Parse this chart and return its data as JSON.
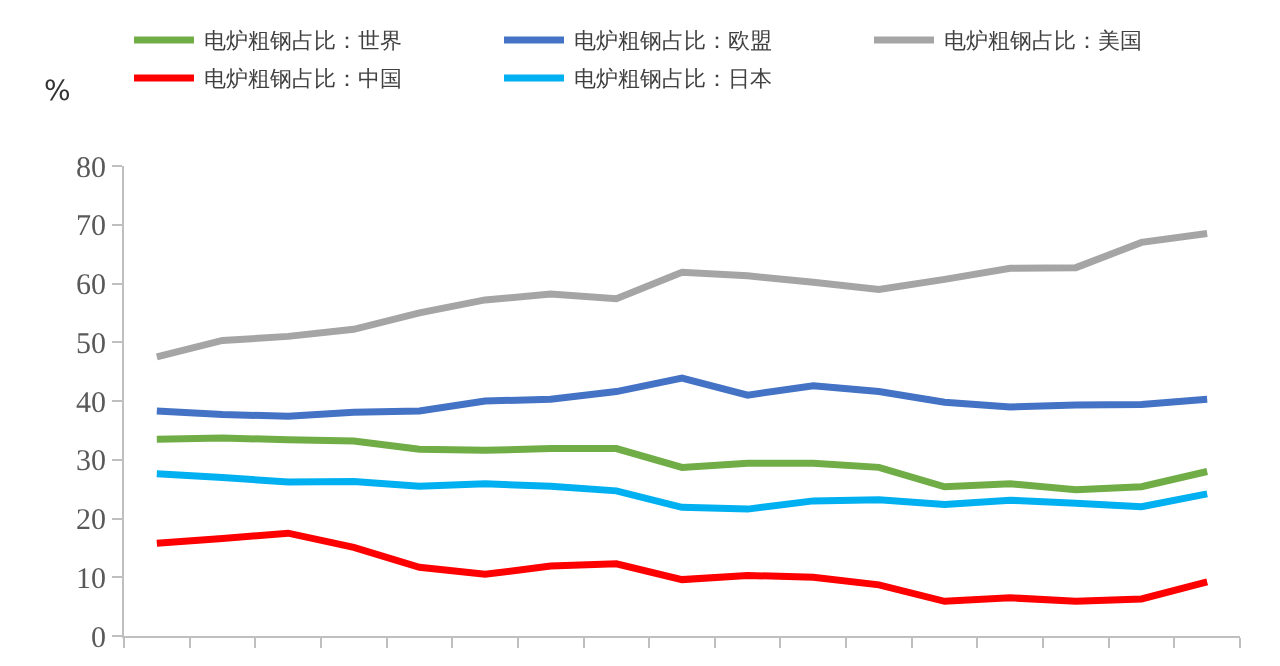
{
  "chart_data": {
    "type": "line",
    "ylabel": "%",
    "categories": [
      null,
      null,
      null,
      null,
      null,
      null,
      null,
      null,
      null,
      null,
      null,
      null,
      null,
      null,
      null,
      null,
      null
    ],
    "series": [
      {
        "name": "电炉粗钢占比：世界",
        "color": "#70ad47",
        "values": [
          33.5,
          33.7,
          33.4,
          33.2,
          31.8,
          31.6,
          31.9,
          31.9,
          28.7,
          29.4,
          29.4,
          28.7,
          25.4,
          25.9,
          24.9,
          25.4,
          28
        ]
      },
      {
        "name": "电炉粗钢占比：欧盟",
        "color": "#4472c4",
        "values": [
          38.3,
          37.7,
          37.4,
          38.1,
          38.3,
          40,
          40.3,
          41.6,
          43.9,
          41,
          42.6,
          41.6,
          39.8,
          39,
          39.3,
          39.4,
          40.3
        ]
      },
      {
        "name": "电炉粗钢占比：美国",
        "color": "#a5a5a5",
        "values": [
          47.5,
          50.3,
          51,
          52.2,
          55,
          57.2,
          58.2,
          57.4,
          61.9,
          61.3,
          60.2,
          59,
          60.7,
          62.6,
          62.7,
          67,
          68.5
        ]
      },
      {
        "name": "电炉粗钢占比：中国",
        "color": "#ff0000",
        "values": [
          15.8,
          16.6,
          17.5,
          15.1,
          11.7,
          10.5,
          11.9,
          12.3,
          9.6,
          10.3,
          10,
          8.7,
          5.9,
          6.5,
          5.9,
          6.3,
          9.2
        ]
      },
      {
        "name": "电炉粗钢占比：日本",
        "color": "#00b0f0",
        "values": [
          27.6,
          27,
          26.2,
          26.3,
          25.5,
          25.9,
          25.5,
          24.7,
          21.9,
          21.6,
          23,
          23.2,
          22.4,
          23.1,
          22.6,
          22,
          24.2
        ]
      }
    ],
    "ylim": [
      0,
      80
    ],
    "yticks": [
      0,
      10,
      20,
      30,
      40,
      50,
      60,
      70,
      80
    ],
    "legend": "top",
    "marker": "none",
    "line_style": "solid",
    "tick_labels": "y"
  }
}
